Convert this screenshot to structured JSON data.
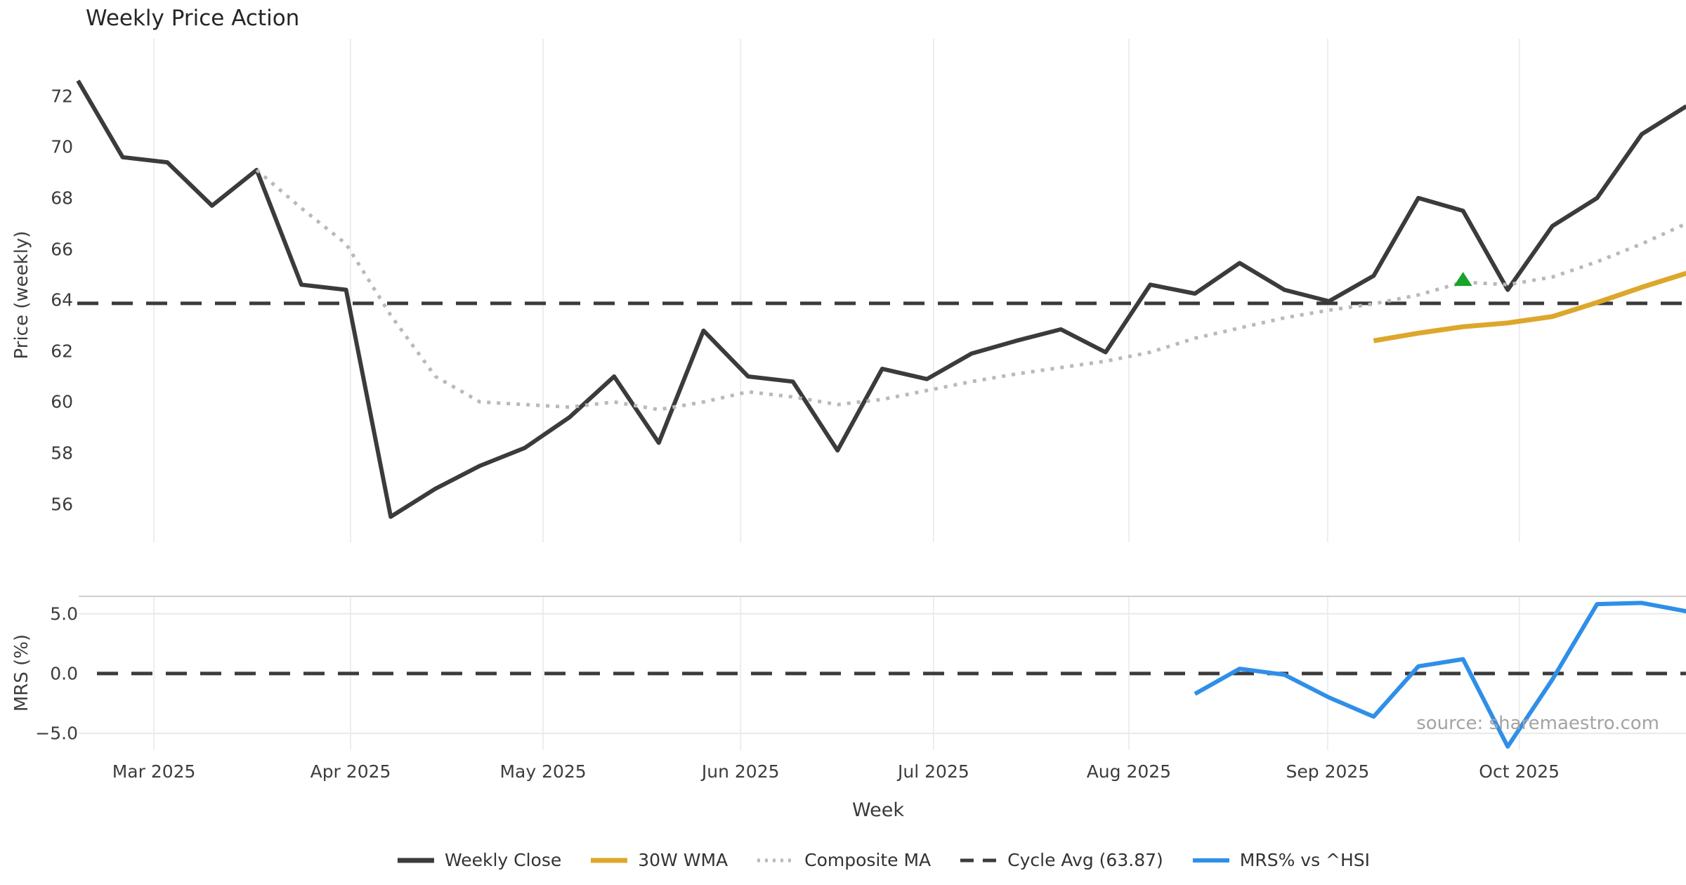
{
  "title": "Weekly Price Action",
  "source_note": "source: sharemaestro.com",
  "x_axis": {
    "label": "Week",
    "months": [
      {
        "label": "Mar 2025",
        "week": 1.7
      },
      {
        "label": "Apr 2025",
        "week": 6.1
      },
      {
        "label": "May 2025",
        "week": 10.41
      },
      {
        "label": "Jun 2025",
        "week": 14.83
      },
      {
        "label": "Jul 2025",
        "week": 19.15
      },
      {
        "label": "Aug 2025",
        "week": 23.52
      },
      {
        "label": "Sep 2025",
        "week": 27.97
      },
      {
        "label": "Oct 2025",
        "week": 32.26
      }
    ]
  },
  "colors": {
    "weekly_close": "#3b3b3b",
    "wma30": "#dda72c",
    "composite_ma": "#b9b9b9",
    "cycle_avg": "#3b3b3b",
    "mrs": "#2f8fe8",
    "signal_marker": "#17a32c",
    "v_gridline": "#e9eef3",
    "h_gridline": "#e9e9e9",
    "panel_border": "#cfcfcf"
  },
  "legend": [
    {
      "label": "Weekly Close",
      "style": "solid",
      "color_key": "weekly_close",
      "weight": 7
    },
    {
      "label": "30W WMA",
      "style": "solid",
      "color_key": "wma30",
      "weight": 7
    },
    {
      "label": "Composite MA",
      "style": "dotted",
      "color_key": "composite_ma",
      "weight": 5
    },
    {
      "label": "Cycle Avg (63.87)",
      "style": "dashed",
      "color_key": "cycle_avg",
      "weight": 5
    },
    {
      "label": "MRS% vs ^HSI",
      "style": "solid",
      "color_key": "mrs",
      "weight": 6
    }
  ],
  "chart_data": {
    "type": "line",
    "x_unit": "week",
    "n_weeks": 37,
    "panels": [
      {
        "name": "price",
        "ylabel": "Price (weekly)",
        "ylim": [
          54.5,
          74.25
        ],
        "yticks": [
          56,
          58,
          60,
          62,
          64,
          66,
          68,
          70,
          72
        ],
        "ytick_labels": [
          "56",
          "58",
          "60",
          "62",
          "64",
          "66",
          "68",
          "70",
          "72"
        ],
        "grid": "vertical",
        "cycle_avg": 63.87,
        "series": [
          {
            "name": "Weekly Close",
            "color_key": "weekly_close",
            "width": 6,
            "style": "solid",
            "start_week": 0,
            "values": [
              72.6,
              69.6,
              69.4,
              67.7,
              69.1,
              64.6,
              64.4,
              55.5,
              56.6,
              57.5,
              58.2,
              59.4,
              61.0,
              58.4,
              62.8,
              61.0,
              60.8,
              58.1,
              61.3,
              60.9,
              61.9,
              62.4,
              62.85,
              61.95,
              64.6,
              64.25,
              65.45,
              64.4,
              63.95,
              64.95,
              68.0,
              67.5,
              64.4,
              66.9,
              68.0,
              70.5,
              71.6
            ]
          },
          {
            "name": "Composite MA",
            "color_key": "composite_ma",
            "width": 5,
            "style": "dotted",
            "start_week": 4,
            "values": [
              69.1,
              67.6,
              66.2,
              63.4,
              61.0,
              60.0,
              59.9,
              59.8,
              60.0,
              59.7,
              60.0,
              60.4,
              60.2,
              59.9,
              60.1,
              60.45,
              60.8,
              61.1,
              61.35,
              61.6,
              61.95,
              62.5,
              62.9,
              63.3,
              63.6,
              63.85,
              64.2,
              64.7,
              64.6,
              64.9,
              65.5,
              66.2,
              67.0
            ]
          },
          {
            "name": "30W WMA",
            "color_key": "wma30",
            "width": 7,
            "style": "solid",
            "start_week": 29,
            "values": [
              62.4,
              62.7,
              62.95,
              63.1,
              63.35,
              63.9,
              64.5,
              65.05
            ]
          }
        ],
        "marker": {
          "type": "triangle-up",
          "week": 31,
          "value": 64.8,
          "color_key": "signal_marker"
        }
      },
      {
        "name": "mrs",
        "ylabel": "MRS (%)",
        "ylim": [
          -6.4,
          6.45
        ],
        "yticks": [
          5.0,
          0.0,
          -5.0
        ],
        "ytick_labels": [
          "5.0",
          "0.0",
          "−5.0"
        ],
        "grid": "horizontal-and-vertical",
        "zero_line": 0.0,
        "series": [
          {
            "name": "MRS% vs ^HSI",
            "color_key": "mrs",
            "width": 6,
            "style": "solid",
            "start_week": 25,
            "values": [
              -1.7,
              0.4,
              -0.1,
              -2.0,
              -3.6,
              0.6,
              1.2,
              -6.1,
              -0.5,
              5.8,
              5.9,
              5.2
            ]
          }
        ]
      }
    ]
  }
}
